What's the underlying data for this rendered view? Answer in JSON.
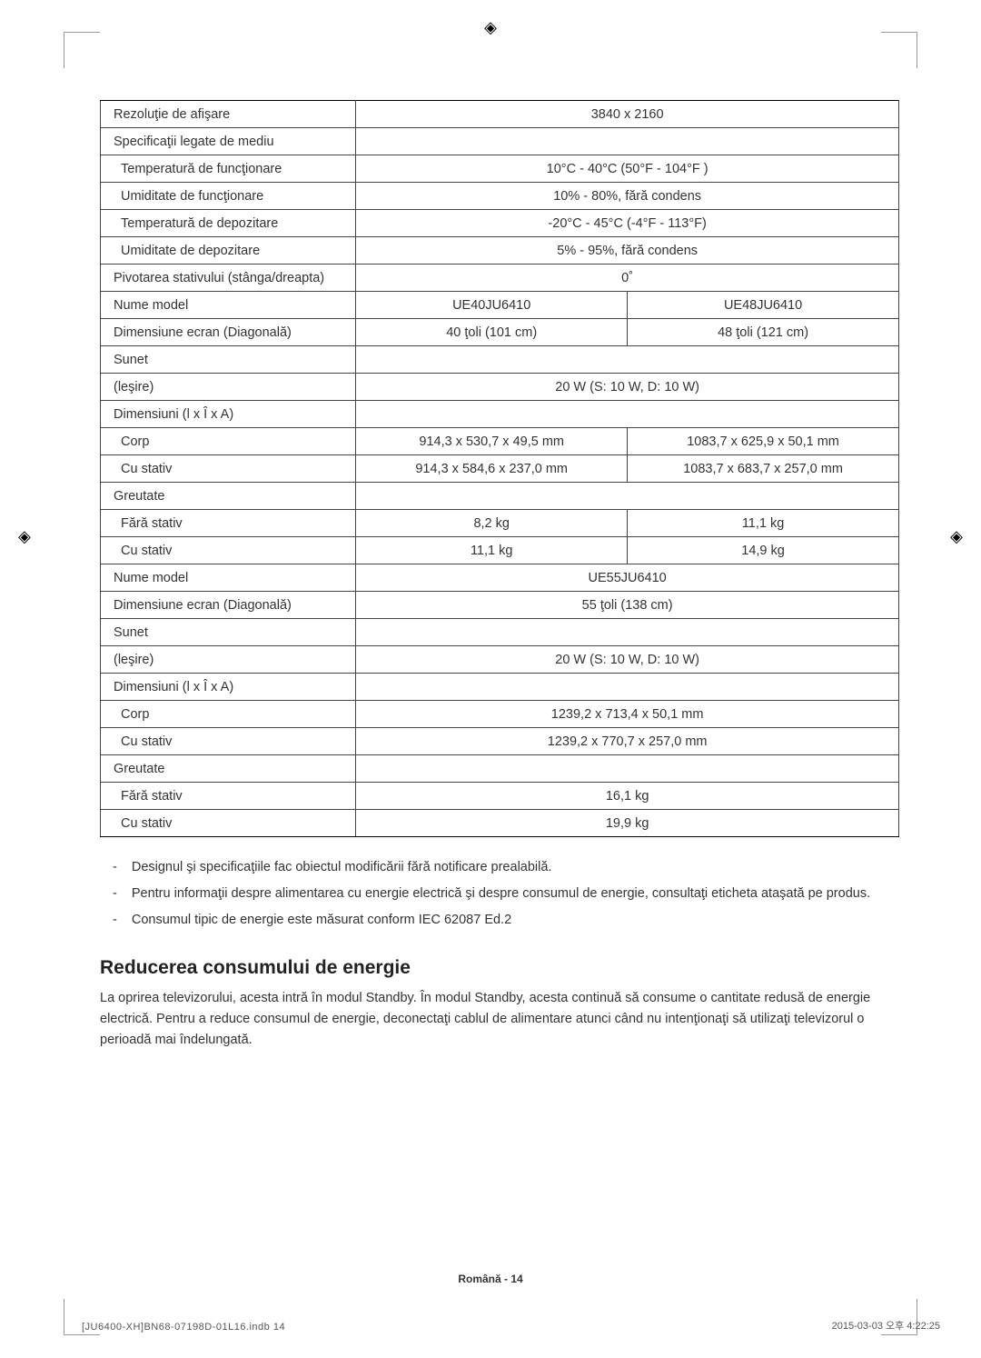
{
  "spec_table": {
    "rows": [
      {
        "label": "Rezoluţie de afişare",
        "span": true,
        "value": "3840 x 2160",
        "thickTop": true
      },
      {
        "label": "Specificaţii legate de mediu",
        "span": true,
        "value": ""
      },
      {
        "label": "Temperatură de funcţionare",
        "span": true,
        "value": "10°C - 40°C (50°F - 104°F )",
        "indent": true
      },
      {
        "label": "Umiditate de funcţionare",
        "span": true,
        "value": "10% - 80%, fără condens",
        "indent": true
      },
      {
        "label": "Temperatură de depozitare",
        "span": true,
        "value": "-20°C - 45°C (-4°F - 113°F)",
        "indent": true
      },
      {
        "label": "Umiditate de depozitare",
        "span": true,
        "value": "5% - 95%, fără condens",
        "indent": true
      },
      {
        "label": "Pivotarea stativului (stânga/dreapta)",
        "span": true,
        "value": "0˚",
        "thickTop": true
      },
      {
        "label": "Nume model",
        "v1": "UE40JU6410",
        "v2": "UE48JU6410",
        "thickTop": true
      },
      {
        "label": "Dimensiune ecran (Diagonală)",
        "v1": "40 ţoli (101 cm)",
        "v2": "48 ţoli (121 cm)"
      },
      {
        "label": "Sunet"
      },
      {
        "label": "(leşire)",
        "span": true,
        "value": "20 W (S: 10 W, D: 10 W)"
      },
      {
        "label": "Dimensiuni (l x Î x A)"
      },
      {
        "label": "Corp",
        "v1": "914,3 x 530,7 x 49,5 mm",
        "v2": "1083,7 x 625,9 x 50,1 mm",
        "indent": true
      },
      {
        "label": "Cu stativ",
        "v1": "914,3 x 584,6 x 237,0 mm",
        "v2": "1083,7 x 683,7 x 257,0 mm",
        "indent": true
      },
      {
        "label": "Greutate"
      },
      {
        "label": "Fără stativ",
        "v1": "8,2 kg",
        "v2": "11,1 kg",
        "indent": true
      },
      {
        "label": "Cu stativ",
        "v1": "11,1 kg",
        "v2": "14,9 kg",
        "indent": true
      },
      {
        "label": "Nume model",
        "span": true,
        "value": "UE55JU6410",
        "thickTop": true
      },
      {
        "label": "Dimensiune ecran (Diagonală)",
        "span": true,
        "value": "55 ţoli (138 cm)"
      },
      {
        "label": "Sunet"
      },
      {
        "label": "(leşire)",
        "span": true,
        "value": "20 W (S: 10 W, D: 10 W)"
      },
      {
        "label": "Dimensiuni (l x Î x A)"
      },
      {
        "label": "Corp",
        "span": true,
        "value": "1239,2 x 713,4 x 50,1 mm",
        "indent": true
      },
      {
        "label": "Cu stativ",
        "span": true,
        "value": "1239,2 x 770,7 x 257,0 mm",
        "indent": true
      },
      {
        "label": "Greutate"
      },
      {
        "label": "Fără stativ",
        "span": true,
        "value": "16,1 kg",
        "indent": true
      },
      {
        "label": "Cu stativ",
        "span": true,
        "value": "19,9 kg",
        "indent": true,
        "thickBottom": true
      }
    ]
  },
  "notes": {
    "item1": "Designul şi specificaţiile fac obiectul modificării fără notificare prealabilă.",
    "item2": "Pentru informaţii despre alimentarea cu energie electrică şi despre consumul de energie, consultaţi eticheta ataşată pe produs.",
    "item3": "Consumul tipic de energie este măsurat conform IEC 62087 Ed.2"
  },
  "section": {
    "title": "Reducerea consumului de energie",
    "body": "La oprirea televizorului, acesta intră în modul Standby. În modul Standby, acesta continuă să consume o cantitate redusă de energie electrică. Pentru a reduce consumul de energie, deconectaţi cablul de alimentare atunci când nu intenţionaţi să utilizaţi televizorul o perioadă mai îndelungată."
  },
  "footer": {
    "page_num": "Română - 14",
    "left": "[JU6400-XH]BN68-07198D-01L16.indb   14",
    "right": "2015-03-03   오후 4:22:25"
  }
}
